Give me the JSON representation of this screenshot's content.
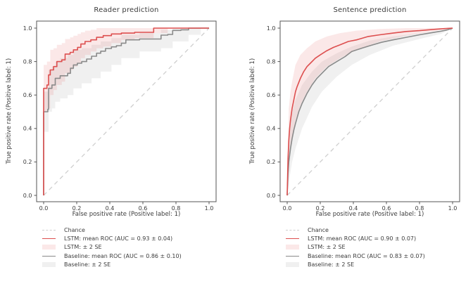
{
  "colors": {
    "chance": "#cfcfcf",
    "lstm": "#dd4f4f",
    "lstm_band": "rgba(221,79,79,0.13)",
    "baseline": "#8a8a8a",
    "baseline_band": "rgba(130,130,130,0.12)",
    "spine": "#555555",
    "text": "#3b3b3b"
  },
  "chart_data": [
    {
      "type": "line",
      "title": "Reader prediction",
      "xlabel": "False positive rate (Positive label: 1)",
      "ylabel": "True positive rate (Positive label: 1)",
      "xlim": [
        -0.04,
        1.04
      ],
      "ylim": [
        -0.04,
        1.04
      ],
      "grid": false,
      "legend_position": "below-left",
      "xticks": [
        "0.0",
        "0.2",
        "0.4",
        "0.6",
        "0.8",
        "1.0"
      ],
      "yticks": [
        "0.0",
        "0.2",
        "0.4",
        "0.6",
        "0.8",
        "1.0"
      ],
      "series": [
        {
          "name": "Chance",
          "color_key": "chance",
          "dash": true,
          "interp": "linear",
          "points": [
            [
              0,
              0
            ],
            [
              1,
              1
            ]
          ]
        },
        {
          "name": "Baseline: mean ROC (AUC = 0.86 ± 0.10)",
          "color_key": "baseline",
          "dash": false,
          "interp": "step",
          "points": [
            [
              0,
              0
            ],
            [
              0,
              0.5
            ],
            [
              0.025,
              0.515
            ],
            [
              0.03,
              0.64
            ],
            [
              0.05,
              0.66
            ],
            [
              0.07,
              0.7
            ],
            [
              0.1,
              0.715
            ],
            [
              0.145,
              0.73
            ],
            [
              0.162,
              0.76
            ],
            [
              0.18,
              0.78
            ],
            [
              0.204,
              0.79
            ],
            [
              0.23,
              0.8
            ],
            [
              0.26,
              0.815
            ],
            [
              0.29,
              0.832
            ],
            [
              0.32,
              0.85
            ],
            [
              0.345,
              0.862
            ],
            [
              0.374,
              0.878
            ],
            [
              0.41,
              0.888
            ],
            [
              0.44,
              0.895
            ],
            [
              0.47,
              0.91
            ],
            [
              0.497,
              0.93
            ],
            [
              0.58,
              0.935
            ],
            [
              0.71,
              0.958
            ],
            [
              0.75,
              0.962
            ],
            [
              0.78,
              0.986
            ],
            [
              0.83,
              0.99
            ],
            [
              0.876,
              1.0
            ],
            [
              1.0,
              1.0
            ]
          ]
        },
        {
          "name": "LSTM: mean ROC (AUC = 0.93 ± 0.04)",
          "color_key": "lstm",
          "dash": false,
          "interp": "step",
          "points": [
            [
              0,
              0
            ],
            [
              0,
              0.64
            ],
            [
              0.02,
              0.66
            ],
            [
              0.03,
              0.72
            ],
            [
              0.04,
              0.75
            ],
            [
              0.06,
              0.77
            ],
            [
              0.08,
              0.8
            ],
            [
              0.11,
              0.81
            ],
            [
              0.13,
              0.845
            ],
            [
              0.16,
              0.855
            ],
            [
              0.18,
              0.87
            ],
            [
              0.205,
              0.885
            ],
            [
              0.225,
              0.905
            ],
            [
              0.25,
              0.92
            ],
            [
              0.285,
              0.93
            ],
            [
              0.32,
              0.945
            ],
            [
              0.36,
              0.955
            ],
            [
              0.41,
              0.965
            ],
            [
              0.47,
              0.97
            ],
            [
              0.55,
              0.975
            ],
            [
              0.665,
              1.0
            ],
            [
              1.0,
              1.0
            ]
          ]
        }
      ],
      "bands": [
        {
          "name": "LSTM: ± 2 SE",
          "color_key": "lstm_band",
          "interp": "step",
          "x": [
            0,
            0.02,
            0.04,
            0.06,
            0.08,
            0.11,
            0.13,
            0.16,
            0.18,
            0.205,
            0.225,
            0.25,
            0.285,
            0.32,
            0.36,
            0.41,
            0.47,
            0.55,
            0.665,
            0.75,
            1.0
          ],
          "upper": [
            0.78,
            0.8,
            0.87,
            0.88,
            0.9,
            0.91,
            0.935,
            0.945,
            0.955,
            0.965,
            0.975,
            0.985,
            0.99,
            1.0,
            1.0,
            1.0,
            1.0,
            1.0,
            1.0,
            1.0,
            1.0
          ],
          "lower": [
            0.5,
            0.52,
            0.6,
            0.63,
            0.66,
            0.68,
            0.73,
            0.75,
            0.77,
            0.79,
            0.82,
            0.84,
            0.86,
            0.88,
            0.89,
            0.91,
            0.93,
            0.94,
            0.97,
            1.0,
            1.0
          ]
        },
        {
          "name": "Baseline: ± 2 SE",
          "color_key": "baseline_band",
          "interp": "step",
          "x": [
            0,
            0.03,
            0.05,
            0.07,
            0.1,
            0.145,
            0.18,
            0.23,
            0.29,
            0.345,
            0.41,
            0.47,
            0.58,
            0.71,
            0.78,
            0.876,
            0.95,
            1.0
          ],
          "upper": [
            0.62,
            0.75,
            0.77,
            0.8,
            0.82,
            0.84,
            0.87,
            0.88,
            0.9,
            0.92,
            0.94,
            0.96,
            0.97,
            0.99,
            1.0,
            1.0,
            1.0,
            1.0
          ],
          "lower": [
            0.38,
            0.5,
            0.52,
            0.56,
            0.58,
            0.6,
            0.64,
            0.67,
            0.7,
            0.74,
            0.78,
            0.82,
            0.86,
            0.88,
            0.92,
            0.96,
            1.0,
            1.0
          ]
        }
      ],
      "legend": [
        {
          "label": "Chance",
          "swatch": "dashed-line",
          "color_key": "chance"
        },
        {
          "label": "LSTM: mean ROC (AUC = 0.93 ± 0.04)",
          "swatch": "line",
          "color_key": "lstm"
        },
        {
          "label": "LSTM: ± 2 SE",
          "swatch": "patch",
          "color_key": "lstm_band"
        },
        {
          "label": "Baseline: mean ROC (AUC = 0.86 ± 0.10)",
          "swatch": "line",
          "color_key": "baseline"
        },
        {
          "label": "Baseline: ± 2 SE",
          "swatch": "patch",
          "color_key": "baseline_band"
        }
      ]
    },
    {
      "type": "line",
      "title": "Sentence prediction",
      "xlabel": "False positive rate (Positive label: 1)",
      "ylabel": "True positive rate (Positive label: 1)",
      "xlim": [
        -0.04,
        1.04
      ],
      "ylim": [
        -0.04,
        1.04
      ],
      "grid": false,
      "legend_position": "below-left",
      "xticks": [
        "0.0",
        "0.2",
        "0.4",
        "0.6",
        "0.8",
        "1.0"
      ],
      "yticks": [
        "0.0",
        "0.2",
        "0.4",
        "0.6",
        "0.8",
        "1.0"
      ],
      "series": [
        {
          "name": "Chance",
          "color_key": "chance",
          "dash": true,
          "interp": "linear",
          "points": [
            [
              0,
              0
            ],
            [
              1,
              1
            ]
          ]
        },
        {
          "name": "Baseline: mean ROC (AUC = 0.83 ± 0.07)",
          "color_key": "baseline",
          "dash": false,
          "interp": "linear",
          "points": [
            [
              0,
              0
            ],
            [
              0.005,
              0.13
            ],
            [
              0.01,
              0.2
            ],
            [
              0.02,
              0.28
            ],
            [
              0.03,
              0.34
            ],
            [
              0.04,
              0.39
            ],
            [
              0.05,
              0.43
            ],
            [
              0.07,
              0.5
            ],
            [
              0.09,
              0.55
            ],
            [
              0.12,
              0.61
            ],
            [
              0.15,
              0.66
            ],
            [
              0.18,
              0.7
            ],
            [
              0.21,
              0.73
            ],
            [
              0.25,
              0.77
            ],
            [
              0.3,
              0.8
            ],
            [
              0.35,
              0.83
            ],
            [
              0.39,
              0.86
            ],
            [
              0.45,
              0.88
            ],
            [
              0.5,
              0.895
            ],
            [
              0.57,
              0.915
            ],
            [
              0.64,
              0.93
            ],
            [
              0.72,
              0.945
            ],
            [
              0.8,
              0.96
            ],
            [
              0.87,
              0.972
            ],
            [
              0.93,
              0.982
            ],
            [
              0.97,
              0.99
            ],
            [
              1.0,
              1.0
            ]
          ]
        },
        {
          "name": "LSTM: mean ROC (AUC = 0.90 ± 0.07)",
          "color_key": "lstm",
          "dash": false,
          "interp": "linear",
          "points": [
            [
              0,
              0
            ],
            [
              0.005,
              0.22
            ],
            [
              0.01,
              0.33
            ],
            [
              0.015,
              0.4
            ],
            [
              0.02,
              0.45
            ],
            [
              0.03,
              0.52
            ],
            [
              0.04,
              0.57
            ],
            [
              0.05,
              0.62
            ],
            [
              0.06,
              0.65
            ],
            [
              0.08,
              0.7
            ],
            [
              0.1,
              0.74
            ],
            [
              0.12,
              0.77
            ],
            [
              0.14,
              0.79
            ],
            [
              0.17,
              0.82
            ],
            [
              0.2,
              0.84
            ],
            [
              0.24,
              0.865
            ],
            [
              0.28,
              0.885
            ],
            [
              0.32,
              0.9
            ],
            [
              0.37,
              0.92
            ],
            [
              0.42,
              0.93
            ],
            [
              0.49,
              0.95
            ],
            [
              0.56,
              0.96
            ],
            [
              0.64,
              0.97
            ],
            [
              0.72,
              0.98
            ],
            [
              0.8,
              0.985
            ],
            [
              0.88,
              0.992
            ],
            [
              0.95,
              0.997
            ],
            [
              1.0,
              1.0
            ]
          ]
        }
      ],
      "bands": [
        {
          "name": "LSTM: ± 2 SE",
          "color_key": "lstm_band",
          "interp": "linear",
          "x": [
            0,
            0.01,
            0.02,
            0.03,
            0.05,
            0.08,
            0.12,
            0.17,
            0.24,
            0.32,
            0.42,
            0.56,
            0.72,
            0.88,
            1.0
          ],
          "upper": [
            0.05,
            0.52,
            0.62,
            0.68,
            0.78,
            0.84,
            0.88,
            0.92,
            0.95,
            0.97,
            0.985,
            0.995,
            1.0,
            1.0,
            1.0
          ],
          "lower": [
            0.0,
            0.18,
            0.27,
            0.34,
            0.45,
            0.54,
            0.62,
            0.7,
            0.77,
            0.82,
            0.87,
            0.92,
            0.955,
            0.98,
            1.0
          ]
        },
        {
          "name": "Baseline: ± 2 SE",
          "color_key": "baseline_band",
          "interp": "linear",
          "x": [
            0,
            0.01,
            0.02,
            0.03,
            0.05,
            0.09,
            0.15,
            0.21,
            0.3,
            0.39,
            0.5,
            0.64,
            0.8,
            0.93,
            1.0
          ],
          "upper": [
            0.04,
            0.35,
            0.44,
            0.5,
            0.57,
            0.66,
            0.74,
            0.8,
            0.85,
            0.89,
            0.925,
            0.95,
            0.97,
            0.985,
            1.0
          ],
          "lower": [
            0.0,
            0.08,
            0.14,
            0.2,
            0.28,
            0.4,
            0.53,
            0.62,
            0.71,
            0.78,
            0.84,
            0.895,
            0.935,
            0.965,
            1.0
          ]
        }
      ],
      "legend": [
        {
          "label": "Chance",
          "swatch": "dashed-line",
          "color_key": "chance"
        },
        {
          "label": "LSTM: mean ROC (AUC = 0.90 ± 0.07)",
          "swatch": "line",
          "color_key": "lstm"
        },
        {
          "label": "LSTM: ± 2 SE",
          "swatch": "patch",
          "color_key": "lstm_band"
        },
        {
          "label": "Baseline: mean ROC (AUC = 0.83 ± 0.07)",
          "swatch": "line",
          "color_key": "baseline"
        },
        {
          "label": "Baseline: ± 2 SE",
          "swatch": "patch",
          "color_key": "baseline_band"
        }
      ]
    }
  ]
}
